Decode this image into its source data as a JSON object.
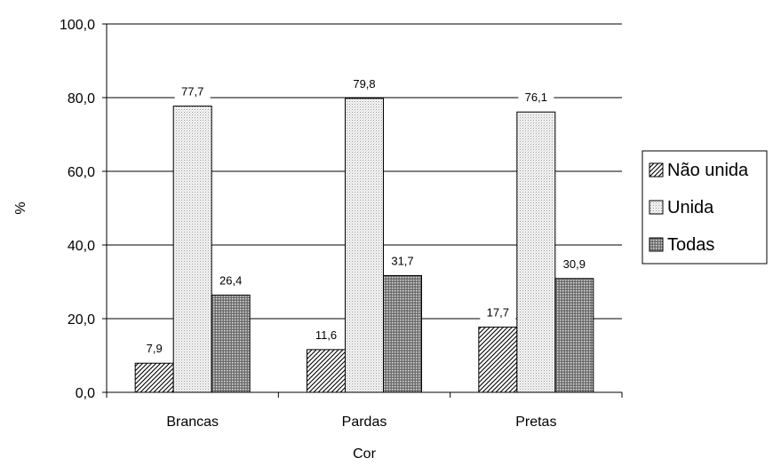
{
  "chart_data": {
    "type": "bar",
    "xlabel": "Cor",
    "ylabel": "%",
    "categories": [
      "Brancas",
      "Pardas",
      "Pretas"
    ],
    "series": [
      {
        "name": "Não unida",
        "values": [
          7.9,
          11.6,
          17.7
        ],
        "labels": [
          "7,9",
          "11,6",
          "17,7"
        ],
        "pattern": "diagonal-hatch"
      },
      {
        "name": "Unida",
        "values": [
          77.7,
          79.8,
          76.1
        ],
        "labels": [
          "77,7",
          "79,8",
          "76,1"
        ],
        "pattern": "light-dots"
      },
      {
        "name": "Todas",
        "values": [
          26.4,
          31.7,
          30.9
        ],
        "labels": [
          "26,4",
          "31,7",
          "30,9"
        ],
        "pattern": "dense-dots"
      }
    ],
    "ylim": [
      0,
      100
    ],
    "yticks": [
      0,
      20,
      40,
      60,
      80,
      100
    ],
    "ytick_labels": [
      "0,0",
      "20,0",
      "40,0",
      "60,0",
      "80,0",
      "100,0"
    ],
    "grid": true,
    "legend_position": "right"
  }
}
